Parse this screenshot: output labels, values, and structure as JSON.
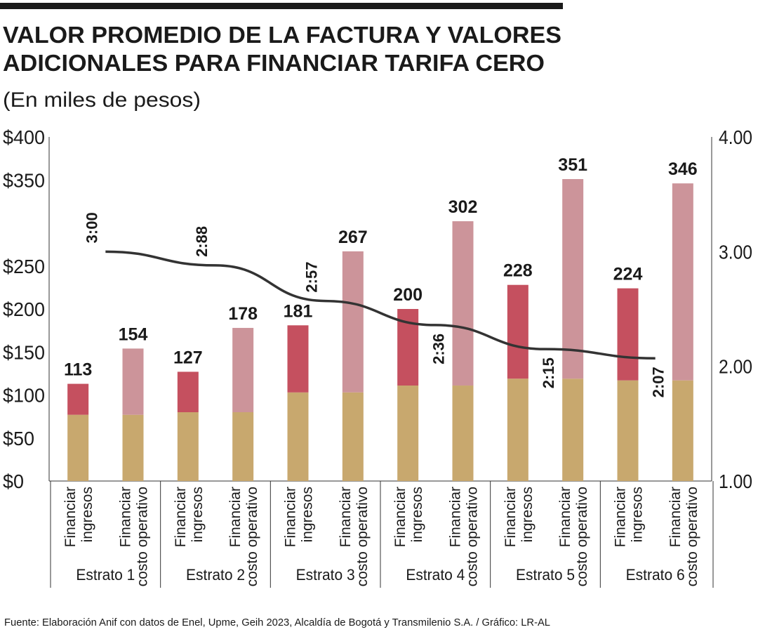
{
  "chart_data": {
    "type": "bar",
    "title": [
      "VALOR PROMEDIO DE LA FACTURA Y VALORES",
      "ADICIONALES PARA FINANCIAR TARIFA CERO"
    ],
    "subtitle": "(En miles de pesos)",
    "source": "Fuente: Elaboración Anif con datos de Enel, Upme, Geih 2023, Alcaldía de Bogotá y Transmilenio S.A. / Gráfico: LR-AL",
    "groups": [
      "Estrato 1",
      "Estrato 2",
      "Estrato 3",
      "Estrato 4",
      "Estrato 5",
      "Estrato 6"
    ],
    "bar_labels": [
      [
        "Financiar",
        "ingresos"
      ],
      [
        "Financiar",
        "costo operativo"
      ]
    ],
    "stacked": true,
    "series": [
      {
        "colors": [
          "#c8a86e",
          "#c8a86e"
        ],
        "values": [
          77,
          77,
          80,
          80,
          103,
          103,
          111,
          111,
          119,
          119,
          117,
          117
        ]
      },
      {
        "colors": [
          "#c5505f",
          "#cc949a"
        ],
        "values": [
          36,
          77,
          47,
          98,
          78,
          164,
          89,
          191,
          109,
          232,
          107,
          229
        ]
      }
    ],
    "totals": [
      113,
      154,
      127,
      178,
      181,
      267,
      200,
      302,
      228,
      351,
      224,
      346
    ],
    "line": {
      "axis": "y2",
      "color": "#333333",
      "values": [
        3.0,
        2.88,
        2.57,
        2.36,
        2.15,
        2.07
      ],
      "value_labels": [
        "3:00",
        "2:88",
        "2:57",
        "2:36",
        "2:15",
        "2:07"
      ]
    },
    "ylim": [
      0,
      400
    ],
    "yticks": [
      {
        "value": 0,
        "label": "$0"
      },
      {
        "value": 50,
        "label": "$50"
      },
      {
        "value": 100,
        "label": "$100"
      },
      {
        "value": 150,
        "label": "$150"
      },
      {
        "value": 200,
        "label": "$200"
      },
      {
        "value": 250,
        "label": "$250"
      },
      {
        "value": 350,
        "label": "$350"
      },
      {
        "value": 400,
        "label": "$400"
      }
    ],
    "y2lim": [
      1,
      4
    ],
    "y2ticks": [
      {
        "value": 1,
        "label": "1.00"
      },
      {
        "value": 2,
        "label": "2.00"
      },
      {
        "value": 3,
        "label": "3.00"
      },
      {
        "value": 4,
        "label": "4.00"
      }
    ]
  }
}
